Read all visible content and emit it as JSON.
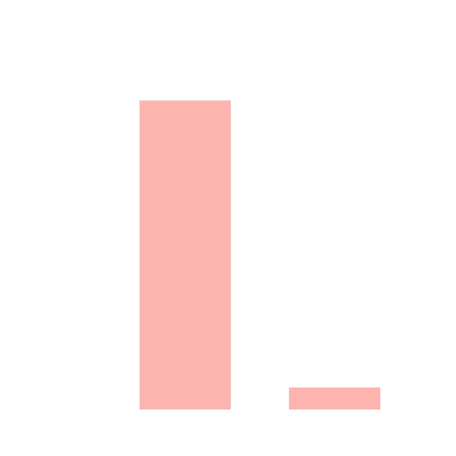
{
  "chart_data": {
    "type": "bar",
    "categories": [
      null,
      null
    ],
    "values": [
      14,
      1
    ],
    "color": "#fbb4ae",
    "ylim": [
      0,
      15
    ]
  }
}
